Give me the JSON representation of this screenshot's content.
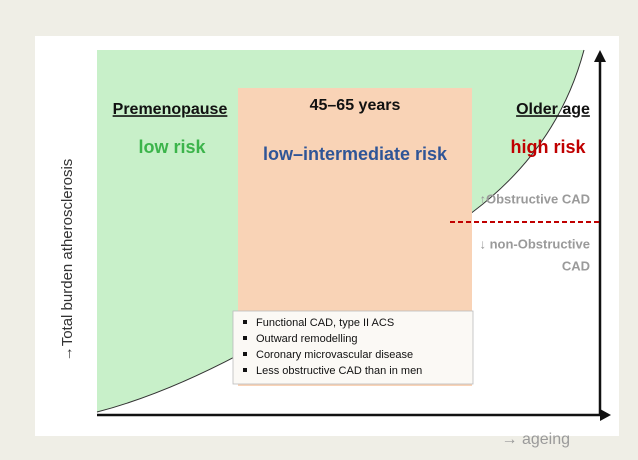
{
  "y_axis_label": "→Total burden atherosclerosis",
  "x_axis_label": "→ ageing",
  "zones": [
    {
      "title": "Premenopause",
      "risk": "low risk"
    },
    {
      "title": "45–65 years",
      "risk": "low–intermediate risk"
    },
    {
      "title": "Older age",
      "risk": "high risk"
    }
  ],
  "threshold": {
    "above": "↑Obstructive CAD",
    "below_line1": "↓ non-Obstructive",
    "below_line2": "CAD"
  },
  "bullets": [
    "Functional CAD, type II ACS",
    "Outward remodelling",
    "Coronary microvascular disease",
    "Less obstructive CAD than in men"
  ]
}
